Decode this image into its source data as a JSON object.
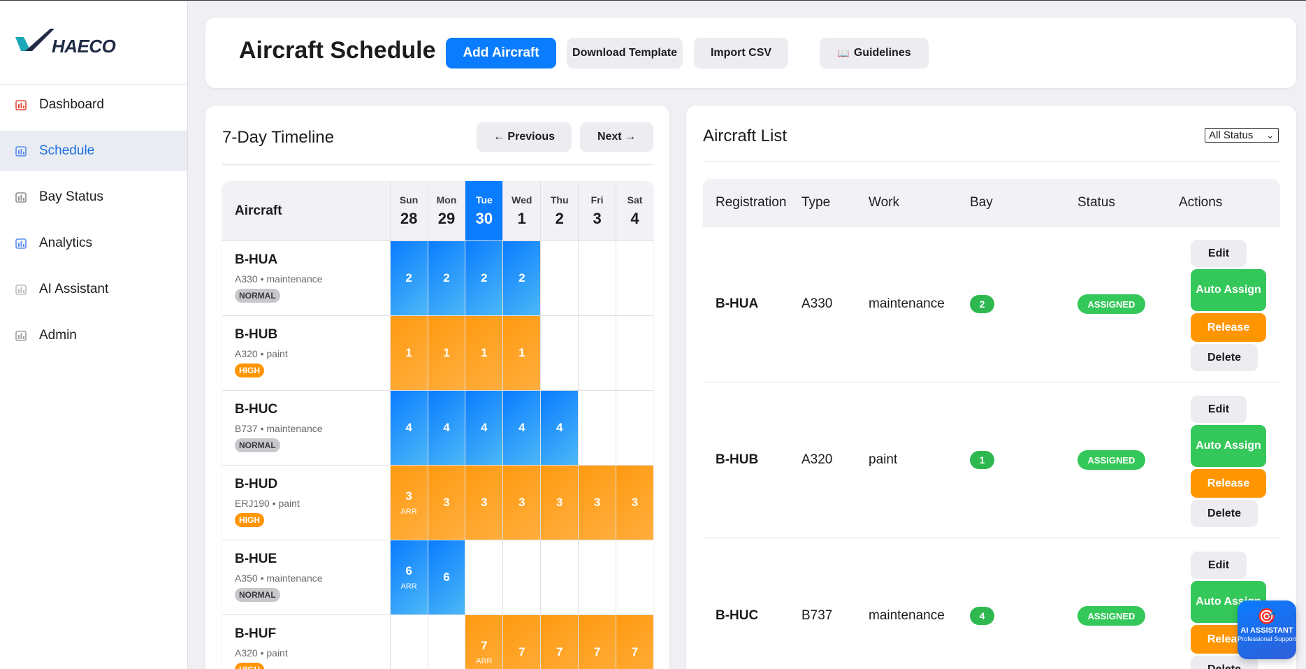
{
  "brand": {
    "name": "HAECO"
  },
  "sidebar": {
    "items": [
      {
        "label": "Dashboard",
        "icon": "bar-chart-icon"
      },
      {
        "label": "Schedule",
        "icon": "calendar-icon",
        "active": true
      },
      {
        "label": "Bay Status",
        "icon": "building-icon"
      },
      {
        "label": "Analytics",
        "icon": "line-chart-icon"
      },
      {
        "label": "AI Assistant",
        "icon": "speech-bubble-icon"
      },
      {
        "label": "Admin",
        "icon": "gear-icon"
      }
    ]
  },
  "header": {
    "title": "Aircraft Schedule",
    "add_label": "Add Aircraft",
    "download_label": "Download Template",
    "import_label": "Import CSV",
    "guidelines_label": "Guidelines",
    "guidelines_icon": "📖"
  },
  "timeline": {
    "title": "7-Day Timeline",
    "prev_label": "← Previous",
    "next_label": "Next →",
    "aircraft_header": "Aircraft",
    "days": [
      {
        "name": "Sun",
        "num": "28"
      },
      {
        "name": "Mon",
        "num": "29"
      },
      {
        "name": "Tue",
        "num": "30",
        "today": true
      },
      {
        "name": "Wed",
        "num": "1"
      },
      {
        "name": "Thu",
        "num": "2"
      },
      {
        "name": "Fri",
        "num": "3"
      },
      {
        "name": "Sat",
        "num": "4"
      }
    ],
    "rows": [
      {
        "reg": "B-HUA",
        "sub": "A330 • maintenance",
        "priority": "NORMAL",
        "color": "blue",
        "cells": [
          "2",
          "2",
          "2",
          "2",
          "",
          "",
          ""
        ],
        "arr": [
          false,
          false,
          false,
          false,
          false,
          false,
          false
        ]
      },
      {
        "reg": "B-HUB",
        "sub": "A320 • paint",
        "priority": "HIGH",
        "color": "orange",
        "cells": [
          "1",
          "1",
          "1",
          "1",
          "",
          "",
          ""
        ],
        "arr": [
          false,
          false,
          false,
          false,
          false,
          false,
          false
        ]
      },
      {
        "reg": "B-HUC",
        "sub": "B737 • maintenance",
        "priority": "NORMAL",
        "color": "blue",
        "cells": [
          "4",
          "4",
          "4",
          "4",
          "4",
          "",
          ""
        ],
        "arr": [
          false,
          false,
          false,
          false,
          false,
          false,
          false
        ]
      },
      {
        "reg": "B-HUD",
        "sub": "ERJ190 • paint",
        "priority": "HIGH",
        "color": "orange",
        "cells": [
          "3",
          "3",
          "3",
          "3",
          "3",
          "3",
          "3"
        ],
        "arr": [
          true,
          false,
          false,
          false,
          false,
          false,
          false
        ]
      },
      {
        "reg": "B-HUE",
        "sub": "A350 • maintenance",
        "priority": "NORMAL",
        "color": "blue",
        "cells": [
          "6",
          "6",
          "",
          "",
          "",
          "",
          ""
        ],
        "arr": [
          true,
          false,
          false,
          false,
          false,
          false,
          false
        ]
      },
      {
        "reg": "B-HUF",
        "sub": "A320 • paint",
        "priority": "HIGH",
        "color": "orange",
        "cells": [
          "",
          "",
          "7",
          "7",
          "7",
          "7",
          "7"
        ],
        "arr": [
          false,
          false,
          true,
          false,
          false,
          false,
          false
        ]
      }
    ],
    "arr_label": "ARR"
  },
  "list": {
    "title": "Aircraft List",
    "filter_value": "All Status",
    "columns": [
      "Registration",
      "Type",
      "Work",
      "Bay",
      "Status",
      "Actions"
    ],
    "rows": [
      {
        "reg": "B-HUA",
        "type": "A330",
        "work": "maintenance",
        "bay": "2",
        "status": "ASSIGNED"
      },
      {
        "reg": "B-HUB",
        "type": "A320",
        "work": "paint",
        "bay": "1",
        "status": "ASSIGNED"
      },
      {
        "reg": "B-HUC",
        "type": "B737",
        "work": "maintenance",
        "bay": "4",
        "status": "ASSIGNED"
      }
    ],
    "actions": {
      "edit": "Edit",
      "auto": "Auto Assign",
      "release": "Release",
      "delete": "Delete"
    }
  },
  "fab": {
    "icon": "🎯",
    "title": "AI ASSISTANT",
    "subtitle": "Professional Support"
  }
}
